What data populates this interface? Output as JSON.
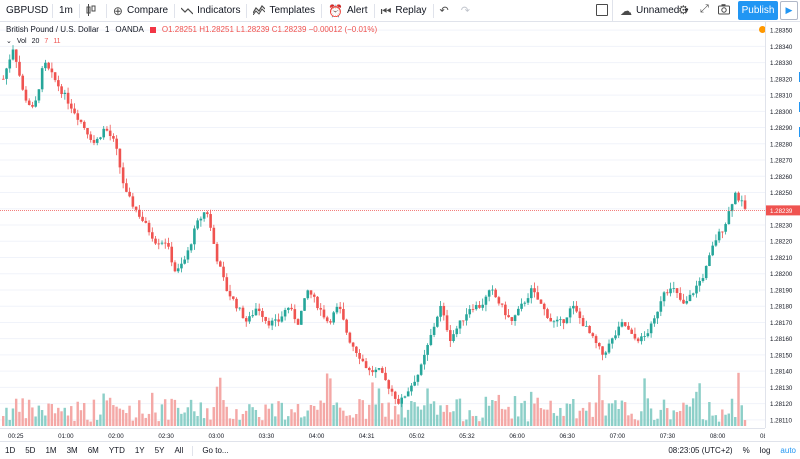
{
  "toolbar": {
    "symbol": "GBPUSD",
    "interval": "1m",
    "compare": "Compare",
    "indicators": "Indicators",
    "templates": "Templates",
    "alert": "Alert",
    "replay": "Replay",
    "layout_name": "Unnamed",
    "publish": "Publish"
  },
  "legend": {
    "title": "British Pound / U.S. Dollar",
    "interval": "1",
    "exchange": "OANDA",
    "ohlc": "O1.28251 H1.28251 L1.28239 C1.28239 −0.00012 (−0.01%)"
  },
  "volume": {
    "label": "Vol",
    "p1": "20",
    "p2": "7",
    "p3": "11"
  },
  "price_axis": {
    "labels": [
      "1.28350",
      "1.28340",
      "1.28330",
      "1.28320",
      "1.28310",
      "1.28300",
      "1.28290",
      "1.28280",
      "1.28270",
      "1.28260",
      "1.28250",
      "1.28240",
      "1.28230",
      "1.28220",
      "1.28210",
      "1.28200",
      "1.28190",
      "1.28180",
      "1.28170",
      "1.28160",
      "1.28150",
      "1.28140",
      "1.28130",
      "1.28120",
      "1.28110"
    ],
    "last_price": "1.28239",
    "last_price_color": "#ef5350"
  },
  "time_axis": {
    "labels": [
      "00:25",
      "01:00",
      "02:00",
      "02:30",
      "03:00",
      "03:30",
      "04:00",
      "04:31",
      "05:02",
      "05:32",
      "06:00",
      "06:30",
      "07:00",
      "07:30",
      "08:00",
      "08:3"
    ]
  },
  "bottom": {
    "ranges": [
      "1D",
      "5D",
      "1M",
      "3M",
      "6M",
      "YTD",
      "1Y",
      "5Y",
      "All"
    ],
    "goto": "Go to...",
    "clock": "08:23:05 (UTC+2)",
    "percent": "%",
    "log": "log",
    "auto": "auto"
  },
  "colors": {
    "up": "#26a69a",
    "down": "#ef5350",
    "up_vol": "#8ccfc8",
    "down_vol": "#f4a8a6"
  },
  "chart_data": {
    "type": "candlestick",
    "ylim": [
      1.28105,
      1.28355
    ],
    "last_price": 1.28239,
    "close": [
      1.2832,
      1.2834,
      1.2831,
      1.283,
      1.2833,
      1.2832,
      1.2831,
      1.283,
      1.2829,
      1.2828,
      1.2829,
      1.2828,
      1.2825,
      1.2824,
      1.2823,
      1.2822,
      1.2822,
      1.282,
      1.2821,
      1.2823,
      1.2824,
      1.2821,
      1.2819,
      1.2818,
      1.2817,
      1.2818,
      1.2817,
      1.2817,
      1.2818,
      1.2817,
      1.2819,
      1.2818,
      1.2817,
      1.2818,
      1.2816,
      1.2815,
      1.2814,
      1.2814,
      1.2813,
      1.2812,
      1.2813,
      1.2814,
      1.2816,
      1.2818,
      1.2816,
      1.2817,
      1.2818,
      1.2818,
      1.2819,
      1.2818,
      1.2817,
      1.2818,
      1.2819,
      1.2818,
      1.2817,
      1.2817,
      1.2818,
      1.2817,
      1.2816,
      1.2815,
      1.2816,
      1.2817,
      1.2816,
      1.2816,
      1.2817,
      1.2819,
      1.2819,
      1.2818,
      1.2819,
      1.282,
      1.2822,
      1.2823,
      1.2825,
      1.2824
    ]
  }
}
